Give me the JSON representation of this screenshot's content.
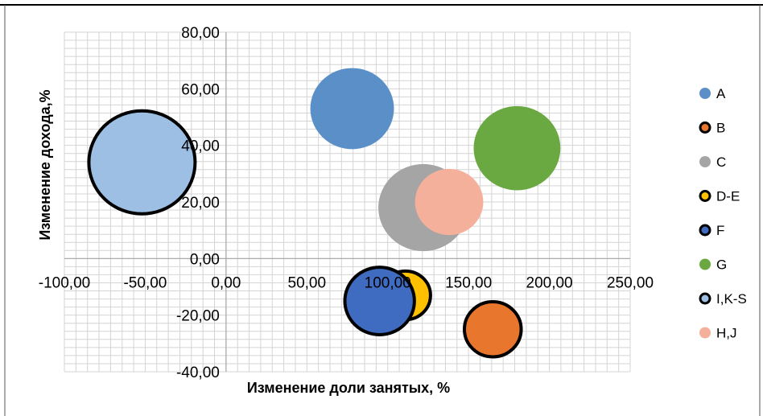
{
  "chart_data": {
    "type": "bubble",
    "title": "",
    "xlabel": "Изменение  доли занятых, %",
    "ylabel": "Изменение дохода,%",
    "xlim": [
      -100,
      250
    ],
    "ylim": [
      -40,
      80
    ],
    "x_ticks": [
      "-100,00",
      "-50,00",
      "0,00",
      "50,00",
      "100,00",
      "150,00",
      "200,00",
      "250,00"
    ],
    "y_ticks": [
      "80,00",
      "60,00",
      "40,00",
      "20,00",
      "0,00",
      "-20,00",
      "-40,00"
    ],
    "grid": true,
    "legend_position": "right",
    "series": [
      {
        "name": "A",
        "x": 78,
        "y": 53,
        "size": 0.39,
        "color": "#5B8FC7",
        "outline": false
      },
      {
        "name": "B",
        "x": 165,
        "y": -25,
        "size": 0.18,
        "color": "#E8762C",
        "outline": true
      },
      {
        "name": "C",
        "x": 122,
        "y": 18,
        "size": 0.45,
        "color": "#A5A5A5",
        "outline": false
      },
      {
        "name": "D-E",
        "x": 111,
        "y": -13,
        "size": 0.14,
        "color": "#FFC000",
        "outline": true
      },
      {
        "name": "F",
        "x": 95,
        "y": -15,
        "size": 0.27,
        "color": "#3F6CC0",
        "outline": true
      },
      {
        "name": "G",
        "x": 180,
        "y": 39,
        "size": 0.42,
        "color": "#6AA842",
        "outline": false
      },
      {
        "name": "I,K-S",
        "x": -52,
        "y": 34,
        "size": 0.63,
        "color": "#9DBFE4",
        "outline": true
      },
      {
        "name": "H,J",
        "x": 138,
        "y": 20,
        "size": 0.26,
        "color": "#F4B09A",
        "outline": false
      }
    ]
  }
}
